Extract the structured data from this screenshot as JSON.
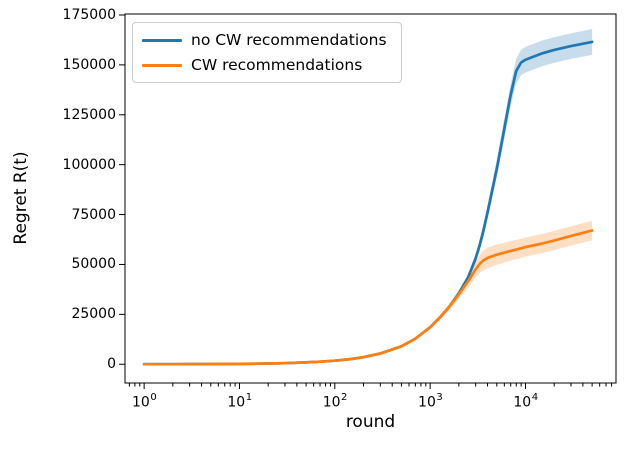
{
  "figure": {
    "background": "#ffffff"
  },
  "chart_data": {
    "type": "line",
    "title": "",
    "xlabel": "round",
    "ylabel": "Regret R(t)",
    "xscale": "log",
    "xlim": [
      0.63,
      89000
    ],
    "ylim": [
      -9400,
      175500
    ],
    "grid": false,
    "axis_color": "#000000",
    "legend_position": "upper left",
    "xticks": [
      {
        "value": 1,
        "base": "10",
        "exp": "0"
      },
      {
        "value": 10,
        "base": "10",
        "exp": "1"
      },
      {
        "value": 100,
        "base": "10",
        "exp": "2"
      },
      {
        "value": 1000,
        "base": "10",
        "exp": "3"
      },
      {
        "value": 10000,
        "base": "10",
        "exp": "4"
      }
    ],
    "yticks": [
      {
        "value": 0,
        "label": "0"
      },
      {
        "value": 25000,
        "label": "25000"
      },
      {
        "value": 50000,
        "label": "50000"
      },
      {
        "value": 75000,
        "label": "75000"
      },
      {
        "value": 100000,
        "label": "100000"
      },
      {
        "value": 125000,
        "label": "125000"
      },
      {
        "value": 150000,
        "label": "150000"
      },
      {
        "value": 175000,
        "label": "175000"
      }
    ],
    "x": [
      1,
      1.5,
      2,
      3,
      5,
      7,
      10,
      15,
      20,
      30,
      50,
      70,
      100,
      150,
      200,
      300,
      500,
      700,
      1000,
      1300,
      1600,
      2000,
      2500,
      3000,
      3300,
      3600,
      4000,
      5000,
      7000,
      8000,
      9000,
      10000,
      15000,
      20000,
      30000,
      50000
    ],
    "series": [
      {
        "name": "no CW recommendations",
        "color": "#1f77b4",
        "band_alpha": 0.25,
        "line_width": 2.7,
        "y": [
          15,
          25,
          35,
          55,
          90,
          125,
          180,
          270,
          360,
          540,
          900,
          1250,
          1750,
          2650,
          3550,
          5400,
          9000,
          12800,
          18500,
          24000,
          29000,
          35500,
          43500,
          53000,
          59500,
          66500,
          76000,
          98000,
          135000,
          147000,
          151200,
          152600,
          155800,
          157500,
          159400,
          161500
        ],
        "band_halfwidth": [
          0,
          0,
          0,
          0,
          0,
          0,
          0,
          0,
          0,
          0,
          0,
          0,
          50,
          80,
          100,
          150,
          250,
          350,
          500,
          700,
          900,
          1200,
          1700,
          2300,
          2700,
          3100,
          3600,
          4500,
          5700,
          6200,
          6400,
          6400,
          6400,
          6400,
          6400,
          6500
        ]
      },
      {
        "name": "CW recommendations",
        "color": "#ff7f0e",
        "band_alpha": 0.25,
        "line_width": 2.7,
        "y": [
          15,
          25,
          35,
          55,
          90,
          125,
          180,
          270,
          360,
          540,
          900,
          1250,
          1750,
          2650,
          3550,
          5400,
          9000,
          12800,
          18500,
          24000,
          29000,
          35000,
          41500,
          47500,
          50200,
          52000,
          53300,
          54900,
          56800,
          57500,
          58100,
          58700,
          60500,
          62000,
          64300,
          67000
        ],
        "band_halfwidth": [
          0,
          0,
          0,
          0,
          0,
          0,
          0,
          0,
          0,
          5,
          10,
          20,
          50,
          100,
          150,
          250,
          450,
          650,
          950,
          1300,
          1700,
          2300,
          3100,
          4000,
          4500,
          5000,
          5200,
          5100,
          4900,
          4800,
          4800,
          4800,
          4800,
          4800,
          4800,
          4900
        ]
      }
    ]
  }
}
